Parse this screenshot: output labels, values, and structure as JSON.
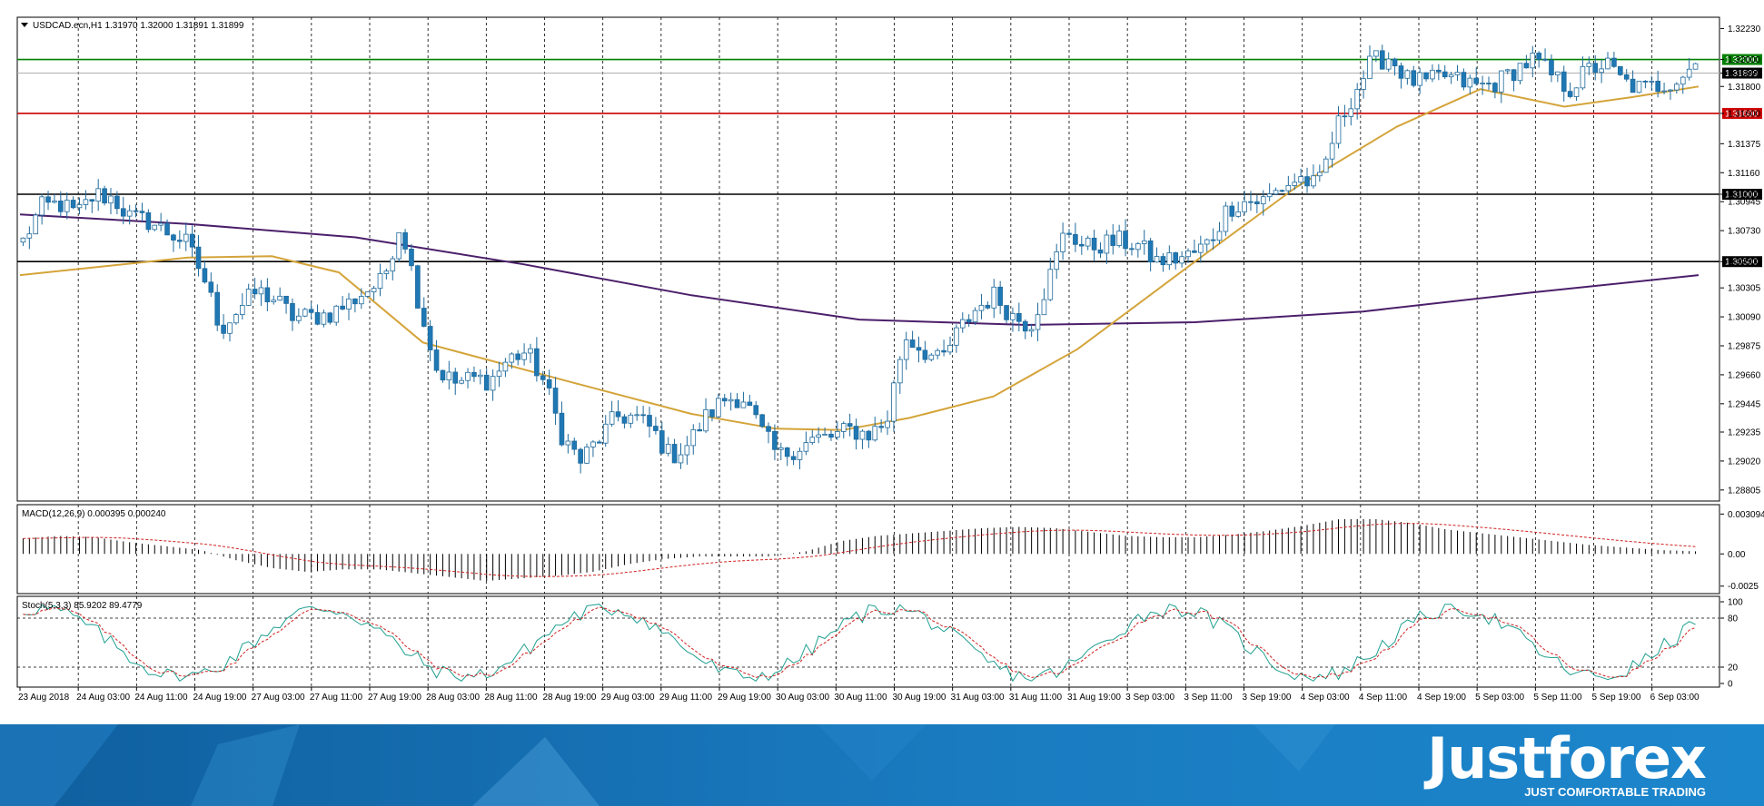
{
  "symbol_header": "USDCAD.ecn,H1  1.31970 1.32000 1.31891 1.31899",
  "macd_header": "MACD(12,26,9) 0.000395 0.000240",
  "stoch_header": "Stoch(5,3,3) 85.9202 89.4779",
  "brand": {
    "name": "Justforex",
    "tagline": "JUST COMFORTABLE TRADING"
  },
  "colors": {
    "candle_up": "#ffffff",
    "candle_down": "#1f78b4",
    "candle_outline": "#1f6a9c",
    "ma_fast": "#d4a43a",
    "ma_slow": "#4b1f6b",
    "resistance_green": "#008000",
    "support_red": "#cc0000",
    "level_black": "#000000",
    "stoch_main": "#20a090",
    "stoch_signal": "#d02020",
    "banner": "#1a7bc0"
  },
  "chart_data": [
    {
      "type": "candlestick",
      "name": "USDCAD.ecn,H1",
      "ylim": [
        1.2875,
        1.3228
      ],
      "price_ticks": [
        "1.32230",
        "1.32000",
        "1.31899",
        "1.31800",
        "1.31600",
        "1.31375",
        "1.31160",
        "1.31000",
        "1.30945",
        "1.30730",
        "1.30500",
        "1.30305",
        "1.30090",
        "1.29875",
        "1.29660",
        "1.29445",
        "1.29235",
        "1.29020",
        "1.28805"
      ],
      "x_labels": [
        "23 Aug 2018",
        "24 Aug 03:00",
        "24 Aug 11:00",
        "24 Aug 19:00",
        "27 Aug 03:00",
        "27 Aug 11:00",
        "27 Aug 19:00",
        "28 Aug 03:00",
        "28 Aug 11:00",
        "28 Aug 19:00",
        "29 Aug 03:00",
        "29 Aug 11:00",
        "29 Aug 19:00",
        "30 Aug 03:00",
        "30 Aug 11:00",
        "30 Aug 19:00",
        "31 Aug 03:00",
        "31 Aug 11:00",
        "31 Aug 19:00",
        "3 Sep 03:00",
        "3 Sep 11:00",
        "3 Sep 19:00",
        "4 Sep 03:00",
        "4 Sep 11:00",
        "4 Sep 19:00",
        "5 Sep 03:00",
        "5 Sep 11:00",
        "5 Sep 19:00",
        "6 Sep 03:00"
      ],
      "horizontal_levels": [
        {
          "value": 1.32,
          "label": "1.32000",
          "color": "green"
        },
        {
          "value": 1.31899,
          "label": "1.31899",
          "color": "black"
        },
        {
          "value": 1.316,
          "label": "1.31600",
          "color": "red"
        },
        {
          "value": 1.31,
          "label": "1.31000",
          "color": "black"
        },
        {
          "value": 1.305,
          "label": "1.30500",
          "color": "black"
        }
      ],
      "anchors": [
        1.3065,
        1.309,
        1.3093,
        1.3085,
        1.31,
        1.3097,
        1.3082,
        1.308,
        1.3072,
        1.3065,
        1.304,
        1.3,
        1.3015,
        1.3028,
        1.3022,
        1.3009,
        1.3009,
        1.3011,
        1.3018,
        1.3028,
        1.3035,
        1.308,
        1.302,
        1.297,
        1.296,
        1.2963,
        1.2962,
        1.2978,
        1.2983,
        1.296,
        1.292,
        1.2902,
        1.2918,
        1.2935,
        1.2935,
        1.2925,
        1.2905,
        1.2915,
        1.2935,
        1.2948,
        1.295,
        1.2925,
        1.2905,
        1.2912,
        1.2918,
        1.292,
        1.2925,
        1.2922,
        1.293,
        1.2995,
        1.2985,
        1.2975,
        1.2998,
        1.3015,
        1.3025,
        1.301,
        1.3003,
        1.3035,
        1.3075,
        1.306,
        1.3063,
        1.3065,
        1.3062,
        1.305,
        1.3052,
        1.3055,
        1.3065,
        1.309,
        1.3095,
        1.3095,
        1.3105,
        1.3112,
        1.3105,
        1.3148,
        1.3175,
        1.3198,
        1.3202,
        1.3185,
        1.3182,
        1.3188,
        1.3183,
        1.318,
        1.3183,
        1.3193,
        1.32,
        1.3188,
        1.3178,
        1.3192,
        1.3197,
        1.3183,
        1.3178,
        1.3181,
        1.3186,
        1.3197
      ],
      "moving_average_fast_approx": [
        [
          0,
          1.304
        ],
        [
          0.1,
          1.3053
        ],
        [
          0.15,
          1.3054
        ],
        [
          0.19,
          1.3042
        ],
        [
          0.24,
          1.299
        ],
        [
          0.33,
          1.296
        ],
        [
          0.4,
          1.2937
        ],
        [
          0.45,
          1.2926
        ],
        [
          0.49,
          1.2925
        ],
        [
          0.53,
          1.2934
        ],
        [
          0.58,
          1.295
        ],
        [
          0.63,
          1.2985
        ],
        [
          0.7,
          1.305
        ],
        [
          0.76,
          1.3105
        ],
        [
          0.82,
          1.315
        ],
        [
          0.87,
          1.3178
        ],
        [
          0.92,
          1.3165
        ],
        [
          0.96,
          1.3172
        ],
        [
          1.0,
          1.318
        ]
      ],
      "moving_average_slow_approx": [
        [
          0,
          1.3085
        ],
        [
          0.1,
          1.3078
        ],
        [
          0.2,
          1.3068
        ],
        [
          0.3,
          1.3048
        ],
        [
          0.4,
          1.3025
        ],
        [
          0.5,
          1.3007
        ],
        [
          0.6,
          1.3003
        ],
        [
          0.7,
          1.3005
        ],
        [
          0.8,
          1.3013
        ],
        [
          0.9,
          1.3027
        ],
        [
          1.0,
          1.304
        ]
      ]
    },
    {
      "type": "bar",
      "name": "MACD(12,26,9)",
      "ylim": [
        -0.0028,
        0.0034
      ],
      "y_ticks": [
        "0.003094",
        "0.00",
        "-0.0025"
      ],
      "values_approx": [
        0.0012,
        0.0014,
        0.0013,
        0.0009,
        0.0006,
        0.0003,
        -0.0005,
        -0.0011,
        -0.0014,
        -0.0012,
        -0.0012,
        -0.0015,
        -0.0018,
        -0.0021,
        -0.0019,
        -0.0017,
        -0.0014,
        -0.0008,
        -0.0004,
        -0.0002,
        -0.0002,
        -0.0002,
        0.0002,
        0.001,
        0.0014,
        0.0016,
        0.0018,
        0.002,
        0.0021,
        0.002,
        0.0017,
        0.0014,
        0.0013,
        0.0013,
        0.0015,
        0.0018,
        0.0022,
        0.0027,
        0.0027,
        0.0024,
        0.0019,
        0.0016,
        0.0013,
        0.001,
        0.0007,
        0.0005,
        0.0003,
        0.0002
      ]
    },
    {
      "type": "line",
      "name": "Stoch(5,3,3)",
      "ylim": [
        0,
        100
      ],
      "y_ticks": [
        "100",
        "80",
        "20",
        "0"
      ],
      "reference_levels": [
        80,
        20
      ]
    }
  ]
}
